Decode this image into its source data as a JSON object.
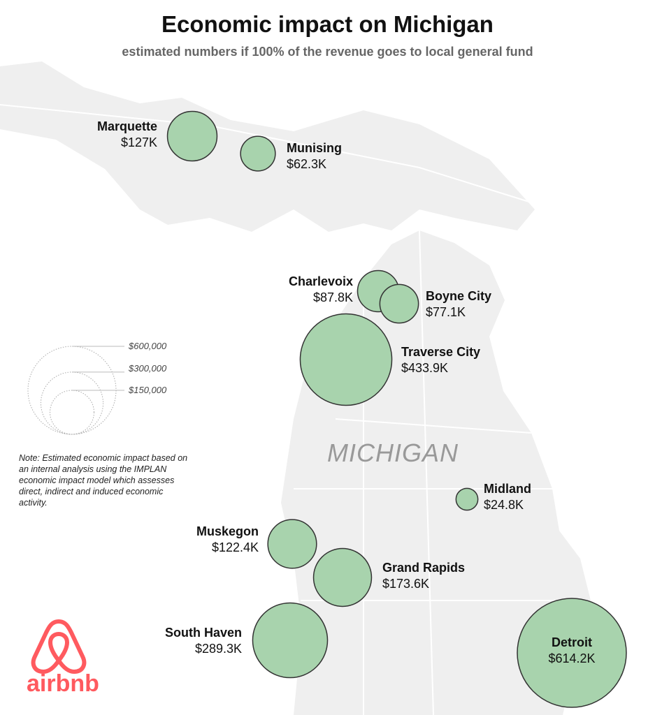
{
  "title": "Economic impact on Michigan",
  "subtitle": "estimated numbers if 100% of the revenue goes to local general fund",
  "state_label": "MICHIGAN",
  "colors": {
    "bubble": "#a8d3ad",
    "bubble_stroke": "#333333",
    "land": "#efefef",
    "brand": "#ff5a5f"
  },
  "cities": [
    {
      "name": "Marquette",
      "value_label": "$127K",
      "value": 127000
    },
    {
      "name": "Munising",
      "value_label": "$62.3K",
      "value": 62300
    },
    {
      "name": "Charlevoix",
      "value_label": "$87.8K",
      "value": 87800
    },
    {
      "name": "Boyne City",
      "value_label": "$77.1K",
      "value": 77100
    },
    {
      "name": "Traverse City",
      "value_label": "$433.9K",
      "value": 433900
    },
    {
      "name": "Midland",
      "value_label": "$24.8K",
      "value": 24800
    },
    {
      "name": "Muskegon",
      "value_label": "$122.4K",
      "value": 122400
    },
    {
      "name": "Grand Rapids",
      "value_label": "$173.6K",
      "value": 173600
    },
    {
      "name": "South Haven",
      "value_label": "$289.3K",
      "value": 289300
    },
    {
      "name": "Detroit",
      "value_label": "$614.2K",
      "value": 614200
    }
  ],
  "legend": [
    "$600,000",
    "$300,000",
    "$150,000"
  ],
  "note": "Note: Estimated economic impact based on an internal analysis using the IMPLAN economic impact model which assesses direct, indirect and induced economic activity.",
  "brand": "airbnb"
}
